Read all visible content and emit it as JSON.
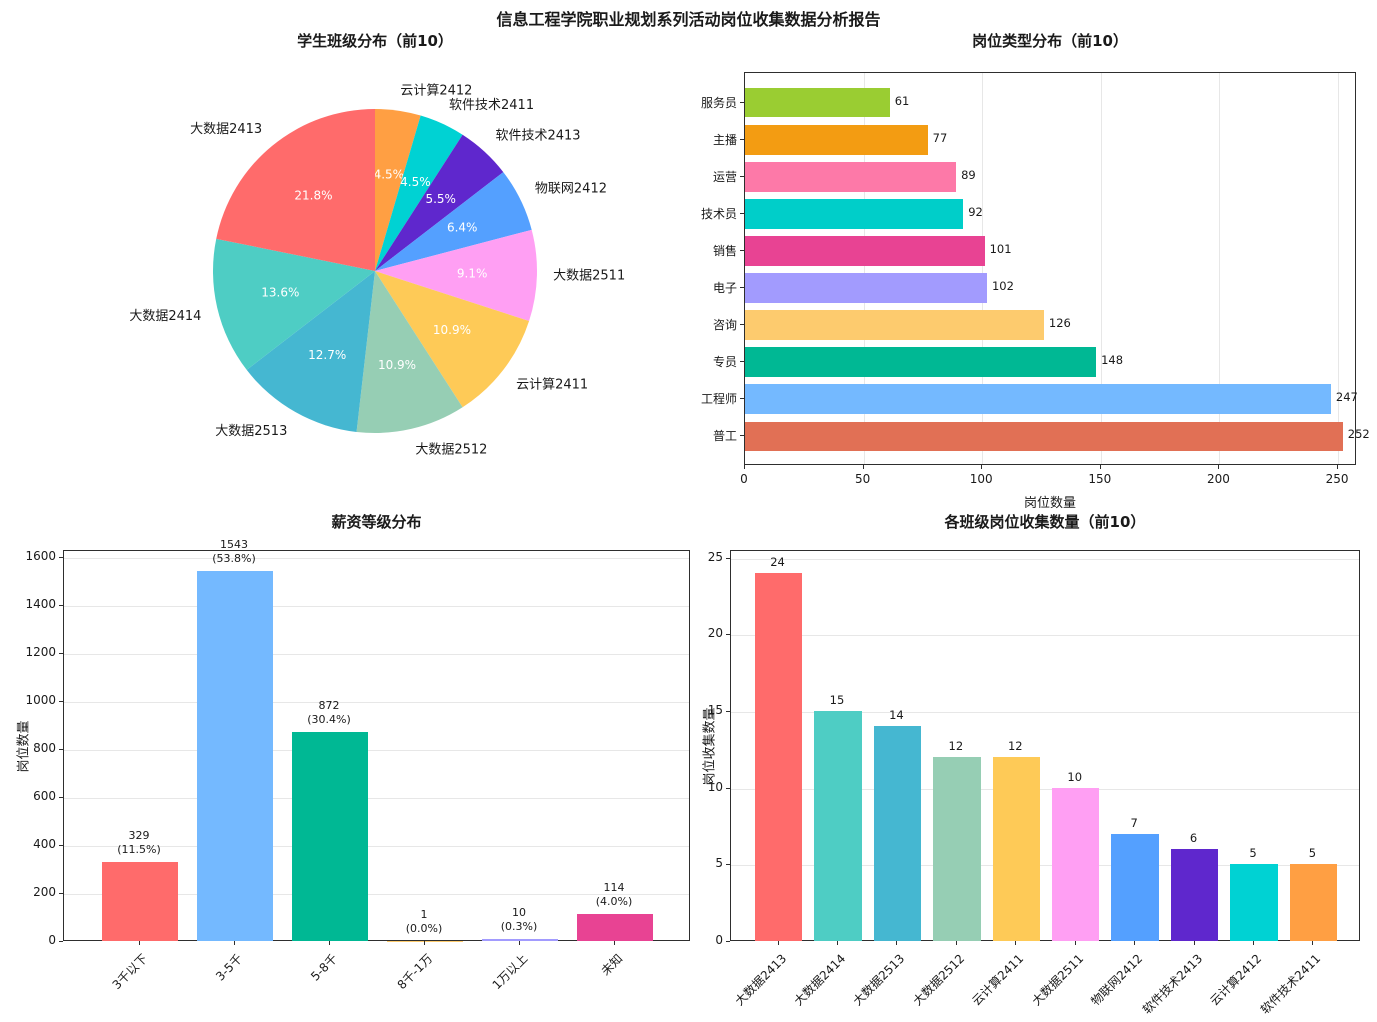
{
  "report": {
    "title": "信息工程学院职业规划系列活动岗位收集数据分析报告"
  },
  "chart_data": [
    {
      "type": "pie",
      "title": "学生班级分布（前10）",
      "labels": [
        "云计算2412",
        "软件技术2411",
        "软件技术2413",
        "物联网2412",
        "大数据2511",
        "云计算2411",
        "大数据2512",
        "大数据2513",
        "大数据2414",
        "大数据2413"
      ],
      "values": [
        5,
        5,
        6,
        7,
        10,
        12,
        12,
        14,
        15,
        24
      ],
      "percent_labels": [
        "4.5%",
        "4.5%",
        "5.5%",
        "6.4%",
        "9.1%",
        "10.9%",
        "10.9%",
        "12.7%",
        "13.6%",
        "21.8%"
      ],
      "colors": [
        "#FF9F43",
        "#00D2D3",
        "#5F27CD",
        "#54A0FF",
        "#FF9FF3",
        "#FECA57",
        "#96CEB4",
        "#45B7D1",
        "#4ECDC4",
        "#FF6B6B"
      ],
      "start_angle_deg": 90,
      "direction": "clockwise",
      "legend": "none"
    },
    {
      "type": "bar",
      "orientation": "horizontal",
      "title": "岗位类型分布（前10）",
      "categories": [
        "服务员",
        "主播",
        "运营",
        "技术员",
        "销售",
        "电子",
        "咨询",
        "专员",
        "工程师",
        "普工"
      ],
      "values": [
        61,
        77,
        89,
        92,
        101,
        102,
        126,
        148,
        247,
        252
      ],
      "colors": [
        "#9ACD32",
        "#F39C12",
        "#FD79A8",
        "#00CEC9",
        "#E84393",
        "#A29BFE",
        "#FDCB6E",
        "#00B894",
        "#74B9FF",
        "#E17055"
      ],
      "xlabel": "岗位数量",
      "xlim": [
        0,
        258
      ],
      "xticks": [
        0,
        50,
        100,
        150,
        200,
        250
      ],
      "grid": "vertical"
    },
    {
      "type": "bar",
      "orientation": "vertical",
      "title": "薪资等级分布",
      "categories": [
        "3千以下",
        "3-5千",
        "5-8千",
        "8千-1万",
        "1万以上",
        "未知"
      ],
      "values": [
        329,
        1543,
        872,
        1,
        10,
        114
      ],
      "percent_labels": [
        "(11.5%)",
        "(53.8%)",
        "(30.4%)",
        "(0.0%)",
        "(0.3%)",
        "(4.0%)"
      ],
      "colors": [
        "#FF6B6B",
        "#74B9FF",
        "#00B894",
        "#FDCB6E",
        "#A29BFE",
        "#E84393"
      ],
      "ylabel": "岗位数量",
      "ylim": [
        0,
        1630
      ],
      "yticks": [
        0,
        200,
        400,
        600,
        800,
        1000,
        1200,
        1400,
        1600
      ],
      "grid": "horizontal"
    },
    {
      "type": "bar",
      "orientation": "vertical",
      "title": "各班级岗位收集数量（前10）",
      "categories": [
        "大数据2413",
        "大数据2414",
        "大数据2513",
        "大数据2512",
        "云计算2411",
        "大数据2511",
        "物联网2412",
        "软件技术2413",
        "云计算2412",
        "软件技术2411"
      ],
      "values": [
        24,
        15,
        14,
        12,
        12,
        10,
        7,
        6,
        5,
        5
      ],
      "colors": [
        "#FF6B6B",
        "#4ECDC4",
        "#45B7D1",
        "#96CEB4",
        "#FECA57",
        "#FF9FF3",
        "#54A0FF",
        "#5F27CD",
        "#00D2D3",
        "#FF9F43"
      ],
      "ylabel": "岗位收集数量",
      "ylim": [
        0,
        25.5
      ],
      "yticks": [
        0,
        5,
        10,
        15,
        20,
        25
      ],
      "grid": "horizontal"
    }
  ]
}
